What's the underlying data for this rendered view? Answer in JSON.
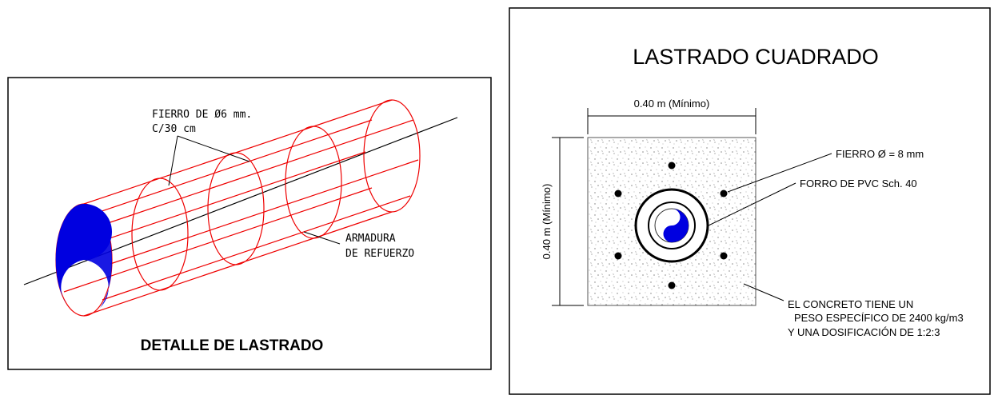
{
  "left_panel": {
    "title": "DETALLE DE LASTRADO",
    "labels": [
      "FIERRO DE Ø6 mm.",
      "C/30 cm",
      "ARMADURA",
      "DE REFUERZO"
    ]
  },
  "right_panel": {
    "title": "LASTRADO CUADRADO",
    "width_dim": "0.40 m (Mínimo)",
    "height_dim": "0.40 m (Mínimo)",
    "labels": [
      "FIERRO  Ø = 8 mm",
      "FORRO DE PVC Sch. 40"
    ],
    "note": [
      "EL CONCRETO TIENE UN",
      "PESO ESPECÍFICO DE 2400 kg/m3",
      "Y UNA DOSIFICACIÓN DE 1:2:3"
    ]
  }
}
